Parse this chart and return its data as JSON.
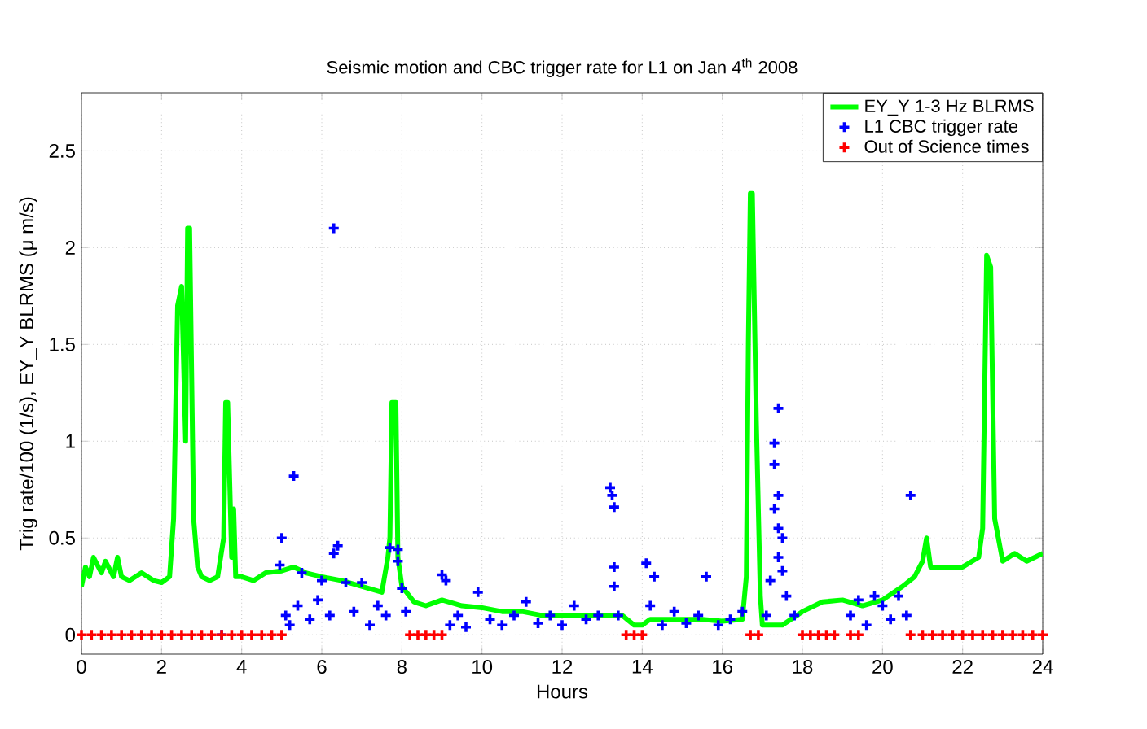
{
  "chart_data": {
    "type": "line",
    "title": "Seismic motion and CBC trigger rate for L1 on Jan 4$^{th}$ 2008",
    "xlabel": "Hours",
    "ylabel": "Trig rate/100 (1/s), EY_Y BLRMS (μ m/s)",
    "xlim": [
      0,
      24
    ],
    "ylim": [
      -0.1,
      2.8
    ],
    "xticks": [
      0,
      2,
      4,
      6,
      8,
      10,
      12,
      14,
      16,
      18,
      20,
      22,
      24
    ],
    "yticks": [
      0,
      0.5,
      1,
      1.5,
      2,
      2.5
    ],
    "grid": true,
    "legend": "top right",
    "series": [
      {
        "name": "EY_Y 1-3 Hz BLRMS",
        "color": "#00ff00",
        "marker": "none",
        "x": [
          0,
          0.1,
          0.2,
          0.3,
          0.5,
          0.6,
          0.8,
          0.9,
          1.0,
          1.2,
          1.5,
          1.8,
          2.0,
          2.2,
          2.3,
          2.4,
          2.5,
          2.6,
          2.65,
          2.7,
          2.8,
          2.9,
          3.0,
          3.2,
          3.4,
          3.55,
          3.6,
          3.65,
          3.75,
          3.8,
          3.85,
          4.0,
          4.3,
          4.6,
          5.0,
          5.3,
          5.6,
          6.0,
          6.5,
          7.0,
          7.5,
          7.65,
          7.7,
          7.75,
          7.85,
          7.9,
          8.0,
          8.3,
          8.6,
          9.0,
          9.5,
          10,
          10.5,
          11,
          11.5,
          12,
          12.5,
          13,
          13.5,
          13.8,
          14.0,
          14.2,
          15,
          15.5,
          16,
          16.5,
          16.6,
          16.65,
          16.7,
          16.75,
          16.85,
          16.95,
          17.0,
          17.5,
          18.0,
          18.5,
          19.0,
          19.5,
          20.0,
          20.5,
          20.8,
          21.0,
          21.1,
          21.2,
          21.5,
          22.0,
          22.4,
          22.5,
          22.6,
          22.7,
          22.8,
          23.0,
          23.3,
          23.6,
          24.0
        ],
        "values": [
          0.25,
          0.35,
          0.3,
          0.4,
          0.32,
          0.38,
          0.3,
          0.4,
          0.3,
          0.28,
          0.32,
          0.28,
          0.27,
          0.3,
          0.6,
          1.7,
          1.8,
          1.0,
          2.1,
          2.1,
          0.6,
          0.35,
          0.3,
          0.28,
          0.3,
          0.5,
          1.2,
          1.2,
          0.4,
          0.65,
          0.3,
          0.3,
          0.28,
          0.32,
          0.33,
          0.35,
          0.32,
          0.3,
          0.28,
          0.25,
          0.22,
          0.4,
          0.5,
          1.2,
          1.2,
          0.4,
          0.25,
          0.17,
          0.15,
          0.18,
          0.15,
          0.14,
          0.12,
          0.12,
          0.1,
          0.1,
          0.1,
          0.1,
          0.1,
          0.05,
          0.05,
          0.08,
          0.08,
          0.08,
          0.07,
          0.08,
          0.3,
          1.5,
          2.28,
          2.28,
          1.1,
          0.2,
          0.05,
          0.05,
          0.12,
          0.17,
          0.18,
          0.15,
          0.18,
          0.25,
          0.3,
          0.38,
          0.5,
          0.35,
          0.35,
          0.35,
          0.4,
          0.55,
          1.96,
          1.9,
          0.6,
          0.38,
          0.42,
          0.38,
          0.42
        ]
      },
      {
        "name": "L1 CBC trigger rate",
        "type": "scatter",
        "color": "#0000ff",
        "marker": "cross",
        "x": [
          3.5,
          4.95,
          5.0,
          5.1,
          5.2,
          5.3,
          5.4,
          5.5,
          5.7,
          5.9,
          6.0,
          6.2,
          6.3,
          6.3,
          6.4,
          6.6,
          6.8,
          7.0,
          7.2,
          7.4,
          7.6,
          7.7,
          7.9,
          7.9,
          8.0,
          8.1,
          9.0,
          9.1,
          9.2,
          9.4,
          9.6,
          9.9,
          10.2,
          10.5,
          10.8,
          11.1,
          11.4,
          11.7,
          12.0,
          12.3,
          12.6,
          12.9,
          13.2,
          13.25,
          13.3,
          13.3,
          13.3,
          13.4,
          14.1,
          14.2,
          14.3,
          14.5,
          14.8,
          15.1,
          15.4,
          15.6,
          15.9,
          16.2,
          16.5,
          17.1,
          17.2,
          17.3,
          17.3,
          17.3,
          17.4,
          17.4,
          17.4,
          17.4,
          17.5,
          17.5,
          17.6,
          17.8,
          19.2,
          19.4,
          19.6,
          19.8,
          20.0,
          20.2,
          20.4,
          20.6,
          20.7
        ],
        "values": [
          0.0,
          0.36,
          0.5,
          0.1,
          0.05,
          0.82,
          0.15,
          0.32,
          0.08,
          0.18,
          0.28,
          0.1,
          2.1,
          0.42,
          0.46,
          0.27,
          0.12,
          0.27,
          0.05,
          0.15,
          0.1,
          0.45,
          0.44,
          0.38,
          0.24,
          0.12,
          0.31,
          0.28,
          0.05,
          0.1,
          0.04,
          0.22,
          0.08,
          0.05,
          0.1,
          0.17,
          0.06,
          0.1,
          0.05,
          0.15,
          0.08,
          0.1,
          0.76,
          0.72,
          0.66,
          0.35,
          0.25,
          0.1,
          0.37,
          0.15,
          0.3,
          0.05,
          0.12,
          0.06,
          0.1,
          0.3,
          0.05,
          0.08,
          0.12,
          0.1,
          0.28,
          0.99,
          0.88,
          0.65,
          1.17,
          0.72,
          0.55,
          0.4,
          0.5,
          0.33,
          0.2,
          0.1,
          0.1,
          0.18,
          0.05,
          0.2,
          0.15,
          0.08,
          0.2,
          0.1,
          0.72
        ]
      },
      {
        "name": "Out of Science times",
        "type": "scatter",
        "color": "#ff0000",
        "marker": "cross",
        "x": [
          0,
          0.25,
          0.5,
          0.75,
          1,
          1.25,
          1.5,
          1.75,
          2,
          2.25,
          2.5,
          2.75,
          3,
          3.25,
          3.5,
          3.75,
          4,
          4.25,
          4.5,
          4.75,
          5,
          8.2,
          8.4,
          8.6,
          8.8,
          9.0,
          13.6,
          13.8,
          14.0,
          16.7,
          16.9,
          18.0,
          18.2,
          18.4,
          18.6,
          18.8,
          19.2,
          19.4,
          20.7,
          21,
          21.25,
          21.5,
          21.75,
          22,
          22.25,
          22.5,
          22.75,
          23,
          23.25,
          23.5,
          23.75,
          24
        ],
        "values": [
          0,
          0,
          0,
          0,
          0,
          0,
          0,
          0,
          0,
          0,
          0,
          0,
          0,
          0,
          0,
          0,
          0,
          0,
          0,
          0,
          0,
          0,
          0,
          0,
          0,
          0,
          0,
          0,
          0,
          0,
          0,
          0,
          0,
          0,
          0,
          0,
          0,
          0,
          0,
          0,
          0,
          0,
          0,
          0,
          0,
          0,
          0,
          0,
          0,
          0,
          0,
          0
        ]
      }
    ]
  }
}
